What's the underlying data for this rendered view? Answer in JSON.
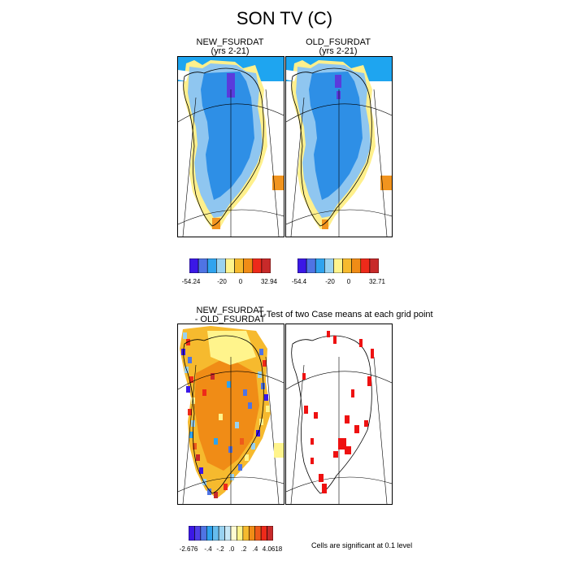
{
  "title": "SON TV (C)",
  "top_panels": [
    {
      "title": "NEW_FSURDAT",
      "subtitle": "(yrs 2-21)"
    },
    {
      "title": "OLD_FSURDAT",
      "subtitle": "(yrs 2-21)"
    }
  ],
  "colorbar_new": {
    "colors": [
      "#3b18e6",
      "#4f74e4",
      "#2fa3ee",
      "#99d2f0",
      "#fff48c",
      "#f6ba2e",
      "#f08c16",
      "#ee2a1a",
      "#c82a2a"
    ],
    "labels": [
      "-54.24",
      "-20",
      "0",
      "32.94"
    ]
  },
  "colorbar_old": {
    "colors": [
      "#3b18e6",
      "#4f74e4",
      "#2fa3ee",
      "#99d2f0",
      "#fff48c",
      "#f6ba2e",
      "#f08c16",
      "#ee2a1a",
      "#c82a2a"
    ],
    "labels": [
      "-54.4",
      "-20",
      "0",
      "32.71"
    ]
  },
  "diff_panel": {
    "title": "NEW_FSURDAT",
    "subtitle": "- OLD_FSURDAT"
  },
  "ttest_panel": {
    "title": "T-Test of two Case means at each grid point"
  },
  "colorbar_diff": {
    "colors": [
      "#3b18e6",
      "#4d3ee8",
      "#4f74e4",
      "#2fa3ee",
      "#66bdee",
      "#99d2f0",
      "#c8e8f6",
      "#fffbd2",
      "#fff48c",
      "#f6ba2e",
      "#f08c16",
      "#ee5a1a",
      "#ee2a1a",
      "#c82a2a"
    ],
    "labels": [
      "-2.676",
      "-.4",
      "-.2",
      ".0",
      ".2",
      ".4",
      "4.0618"
    ]
  },
  "significance_note": "Cells are significant at 0.1 level",
  "colors": {
    "deep_blue": "#2e8fe6",
    "light_blue": "#8fc6f0",
    "sky": "#1ea5f0",
    "yellow": "#fff08c",
    "orange": "#f2941e",
    "purple": "#5a3bdc",
    "sig_red": "#ee1111"
  }
}
